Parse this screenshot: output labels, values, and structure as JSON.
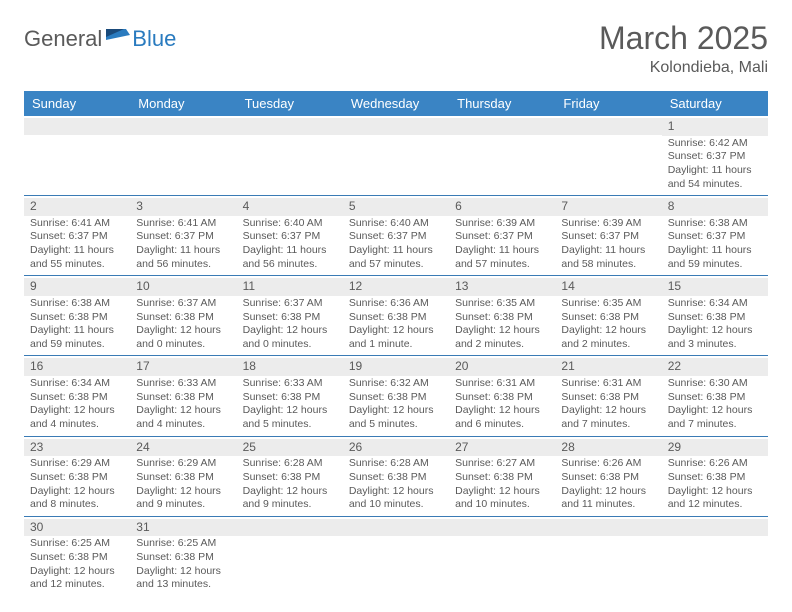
{
  "logo": {
    "text1": "General",
    "text2": "Blue"
  },
  "title": "March 2025",
  "location": "Kolondieba, Mali",
  "day_headers": [
    "Sunday",
    "Monday",
    "Tuesday",
    "Wednesday",
    "Thursday",
    "Friday",
    "Saturday"
  ],
  "colors": {
    "header_bg": "#3a84c4",
    "header_text": "#ffffff",
    "cell_border": "#3a7bb5",
    "daynum_bg": "#ececec",
    "text": "#5a5a5a",
    "logo_blue": "#2a7bbf"
  },
  "weeks": [
    [
      {
        "day": "",
        "sunrise": "",
        "sunset": "",
        "daylight": ""
      },
      {
        "day": "",
        "sunrise": "",
        "sunset": "",
        "daylight": ""
      },
      {
        "day": "",
        "sunrise": "",
        "sunset": "",
        "daylight": ""
      },
      {
        "day": "",
        "sunrise": "",
        "sunset": "",
        "daylight": ""
      },
      {
        "day": "",
        "sunrise": "",
        "sunset": "",
        "daylight": ""
      },
      {
        "day": "",
        "sunrise": "",
        "sunset": "",
        "daylight": ""
      },
      {
        "day": "1",
        "sunrise": "Sunrise: 6:42 AM",
        "sunset": "Sunset: 6:37 PM",
        "daylight": "Daylight: 11 hours and 54 minutes."
      }
    ],
    [
      {
        "day": "2",
        "sunrise": "Sunrise: 6:41 AM",
        "sunset": "Sunset: 6:37 PM",
        "daylight": "Daylight: 11 hours and 55 minutes."
      },
      {
        "day": "3",
        "sunrise": "Sunrise: 6:41 AM",
        "sunset": "Sunset: 6:37 PM",
        "daylight": "Daylight: 11 hours and 56 minutes."
      },
      {
        "day": "4",
        "sunrise": "Sunrise: 6:40 AM",
        "sunset": "Sunset: 6:37 PM",
        "daylight": "Daylight: 11 hours and 56 minutes."
      },
      {
        "day": "5",
        "sunrise": "Sunrise: 6:40 AM",
        "sunset": "Sunset: 6:37 PM",
        "daylight": "Daylight: 11 hours and 57 minutes."
      },
      {
        "day": "6",
        "sunrise": "Sunrise: 6:39 AM",
        "sunset": "Sunset: 6:37 PM",
        "daylight": "Daylight: 11 hours and 57 minutes."
      },
      {
        "day": "7",
        "sunrise": "Sunrise: 6:39 AM",
        "sunset": "Sunset: 6:37 PM",
        "daylight": "Daylight: 11 hours and 58 minutes."
      },
      {
        "day": "8",
        "sunrise": "Sunrise: 6:38 AM",
        "sunset": "Sunset: 6:37 PM",
        "daylight": "Daylight: 11 hours and 59 minutes."
      }
    ],
    [
      {
        "day": "9",
        "sunrise": "Sunrise: 6:38 AM",
        "sunset": "Sunset: 6:38 PM",
        "daylight": "Daylight: 11 hours and 59 minutes."
      },
      {
        "day": "10",
        "sunrise": "Sunrise: 6:37 AM",
        "sunset": "Sunset: 6:38 PM",
        "daylight": "Daylight: 12 hours and 0 minutes."
      },
      {
        "day": "11",
        "sunrise": "Sunrise: 6:37 AM",
        "sunset": "Sunset: 6:38 PM",
        "daylight": "Daylight: 12 hours and 0 minutes."
      },
      {
        "day": "12",
        "sunrise": "Sunrise: 6:36 AM",
        "sunset": "Sunset: 6:38 PM",
        "daylight": "Daylight: 12 hours and 1 minute."
      },
      {
        "day": "13",
        "sunrise": "Sunrise: 6:35 AM",
        "sunset": "Sunset: 6:38 PM",
        "daylight": "Daylight: 12 hours and 2 minutes."
      },
      {
        "day": "14",
        "sunrise": "Sunrise: 6:35 AM",
        "sunset": "Sunset: 6:38 PM",
        "daylight": "Daylight: 12 hours and 2 minutes."
      },
      {
        "day": "15",
        "sunrise": "Sunrise: 6:34 AM",
        "sunset": "Sunset: 6:38 PM",
        "daylight": "Daylight: 12 hours and 3 minutes."
      }
    ],
    [
      {
        "day": "16",
        "sunrise": "Sunrise: 6:34 AM",
        "sunset": "Sunset: 6:38 PM",
        "daylight": "Daylight: 12 hours and 4 minutes."
      },
      {
        "day": "17",
        "sunrise": "Sunrise: 6:33 AM",
        "sunset": "Sunset: 6:38 PM",
        "daylight": "Daylight: 12 hours and 4 minutes."
      },
      {
        "day": "18",
        "sunrise": "Sunrise: 6:33 AM",
        "sunset": "Sunset: 6:38 PM",
        "daylight": "Daylight: 12 hours and 5 minutes."
      },
      {
        "day": "19",
        "sunrise": "Sunrise: 6:32 AM",
        "sunset": "Sunset: 6:38 PM",
        "daylight": "Daylight: 12 hours and 5 minutes."
      },
      {
        "day": "20",
        "sunrise": "Sunrise: 6:31 AM",
        "sunset": "Sunset: 6:38 PM",
        "daylight": "Daylight: 12 hours and 6 minutes."
      },
      {
        "day": "21",
        "sunrise": "Sunrise: 6:31 AM",
        "sunset": "Sunset: 6:38 PM",
        "daylight": "Daylight: 12 hours and 7 minutes."
      },
      {
        "day": "22",
        "sunrise": "Sunrise: 6:30 AM",
        "sunset": "Sunset: 6:38 PM",
        "daylight": "Daylight: 12 hours and 7 minutes."
      }
    ],
    [
      {
        "day": "23",
        "sunrise": "Sunrise: 6:29 AM",
        "sunset": "Sunset: 6:38 PM",
        "daylight": "Daylight: 12 hours and 8 minutes."
      },
      {
        "day": "24",
        "sunrise": "Sunrise: 6:29 AM",
        "sunset": "Sunset: 6:38 PM",
        "daylight": "Daylight: 12 hours and 9 minutes."
      },
      {
        "day": "25",
        "sunrise": "Sunrise: 6:28 AM",
        "sunset": "Sunset: 6:38 PM",
        "daylight": "Daylight: 12 hours and 9 minutes."
      },
      {
        "day": "26",
        "sunrise": "Sunrise: 6:28 AM",
        "sunset": "Sunset: 6:38 PM",
        "daylight": "Daylight: 12 hours and 10 minutes."
      },
      {
        "day": "27",
        "sunrise": "Sunrise: 6:27 AM",
        "sunset": "Sunset: 6:38 PM",
        "daylight": "Daylight: 12 hours and 10 minutes."
      },
      {
        "day": "28",
        "sunrise": "Sunrise: 6:26 AM",
        "sunset": "Sunset: 6:38 PM",
        "daylight": "Daylight: 12 hours and 11 minutes."
      },
      {
        "day": "29",
        "sunrise": "Sunrise: 6:26 AM",
        "sunset": "Sunset: 6:38 PM",
        "daylight": "Daylight: 12 hours and 12 minutes."
      }
    ],
    [
      {
        "day": "30",
        "sunrise": "Sunrise: 6:25 AM",
        "sunset": "Sunset: 6:38 PM",
        "daylight": "Daylight: 12 hours and 12 minutes."
      },
      {
        "day": "31",
        "sunrise": "Sunrise: 6:25 AM",
        "sunset": "Sunset: 6:38 PM",
        "daylight": "Daylight: 12 hours and 13 minutes."
      },
      {
        "day": "",
        "sunrise": "",
        "sunset": "",
        "daylight": ""
      },
      {
        "day": "",
        "sunrise": "",
        "sunset": "",
        "daylight": ""
      },
      {
        "day": "",
        "sunrise": "",
        "sunset": "",
        "daylight": ""
      },
      {
        "day": "",
        "sunrise": "",
        "sunset": "",
        "daylight": ""
      },
      {
        "day": "",
        "sunrise": "",
        "sunset": "",
        "daylight": ""
      }
    ]
  ]
}
